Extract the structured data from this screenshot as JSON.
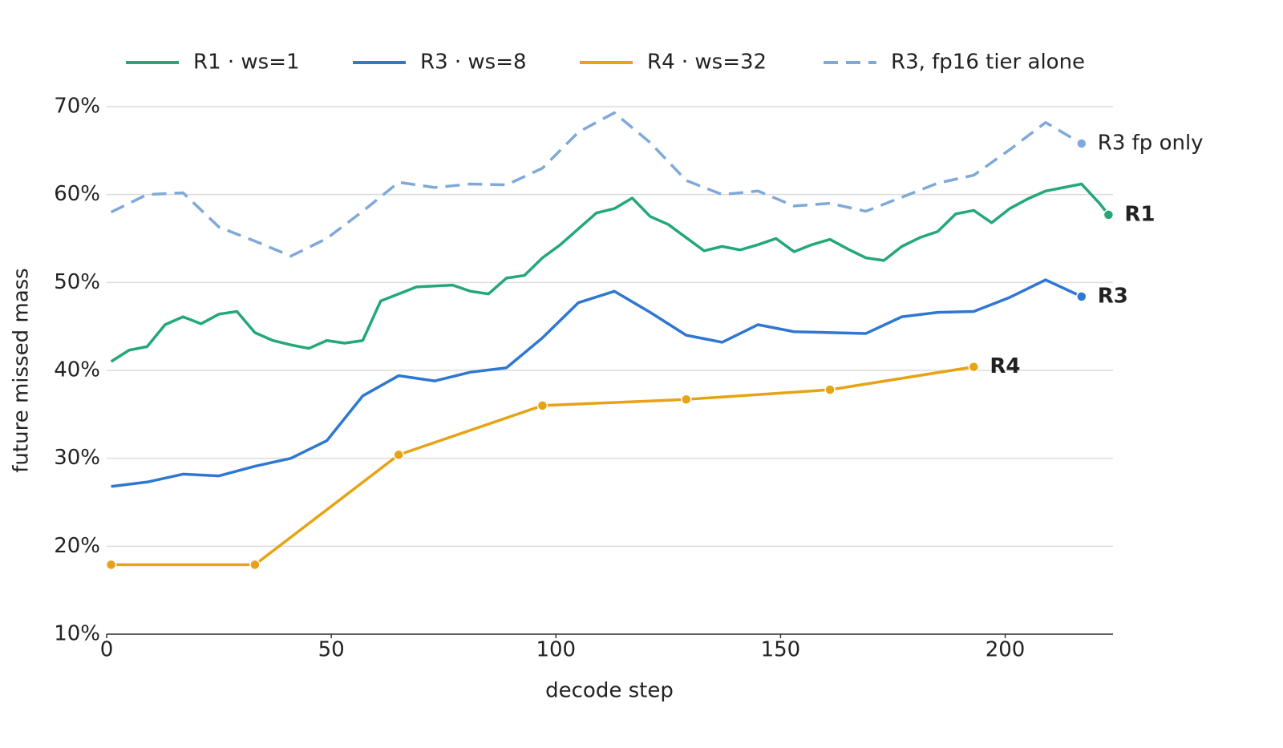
{
  "chart_data": {
    "type": "line",
    "xlabel": "decode step",
    "ylabel": "future missed mass",
    "xlim": [
      0,
      224
    ],
    "xticks": [
      0,
      50,
      100,
      150,
      200
    ],
    "ylim": [
      10,
      70
    ],
    "yticks": [
      {
        "value": 10,
        "label": "10%"
      },
      {
        "value": 20,
        "label": "20%"
      },
      {
        "value": 30,
        "label": "30%"
      },
      {
        "value": 40,
        "label": "40%"
      },
      {
        "value": 50,
        "label": "50%"
      },
      {
        "value": 60,
        "label": "60%"
      },
      {
        "value": 70,
        "label": "70%"
      }
    ],
    "grid": true,
    "legend": "top",
    "series": [
      {
        "name": "R1 · ws=1",
        "color": "#23a877",
        "end_label": "R1",
        "x": [
          1,
          5,
          9,
          13,
          17,
          21,
          25,
          29,
          33,
          37,
          41,
          45,
          49,
          53,
          57,
          61,
          65,
          69,
          73,
          77,
          81,
          85,
          89,
          93,
          97,
          101,
          105,
          109,
          113,
          117,
          121,
          125,
          129,
          133,
          137,
          141,
          145,
          149,
          153,
          157,
          161,
          165,
          169,
          173,
          177,
          181,
          185,
          189,
          193,
          197,
          201,
          205,
          209,
          213,
          217,
          221,
          223
        ],
        "values": [
          41.0,
          42.3,
          42.7,
          45.2,
          46.1,
          45.3,
          46.4,
          46.7,
          44.3,
          43.4,
          42.9,
          42.5,
          43.4,
          43.1,
          43.4,
          47.9,
          48.7,
          49.5,
          49.6,
          49.7,
          49.0,
          48.7,
          50.5,
          50.8,
          52.8,
          54.3,
          56.1,
          57.9,
          58.4,
          59.6,
          57.5,
          56.6,
          55.1,
          53.6,
          54.1,
          53.7,
          54.3,
          55.0,
          53.5,
          54.3,
          54.9,
          53.8,
          52.8,
          52.5,
          54.1,
          55.1,
          55.8,
          57.8,
          58.2,
          56.8,
          58.4,
          59.5,
          60.4,
          60.8,
          61.2,
          59.0,
          57.7
        ]
      },
      {
        "name": "R3 · ws=8",
        "color": "#2f77d0",
        "end_label": "R3",
        "x": [
          1,
          9,
          17,
          25,
          33,
          41,
          49,
          57,
          65,
          73,
          81,
          89,
          97,
          105,
          113,
          121,
          129,
          137,
          145,
          153,
          161,
          169,
          177,
          185,
          193,
          201,
          209,
          217
        ],
        "values": [
          26.8,
          27.3,
          28.2,
          28.0,
          29.1,
          30.0,
          32.0,
          37.1,
          39.4,
          38.8,
          39.8,
          40.3,
          43.7,
          47.7,
          49.0,
          46.6,
          44.0,
          43.2,
          45.2,
          44.4,
          44.3,
          44.2,
          46.1,
          46.6,
          46.7,
          48.3,
          50.3,
          48.4
        ]
      },
      {
        "name": "R4 · ws=32",
        "color": "#e6a313",
        "end_label": "R4",
        "markers": true,
        "x": [
          1,
          33,
          65,
          97,
          129,
          161,
          193
        ],
        "values": [
          17.9,
          17.9,
          30.4,
          36.0,
          36.7,
          37.8,
          40.4
        ]
      },
      {
        "name": "R3, fp16 tier alone",
        "color": "#7fa9d9",
        "end_label": "R3 fp only",
        "dashed": true,
        "x": [
          1,
          9,
          17,
          25,
          33,
          41,
          49,
          57,
          65,
          73,
          81,
          89,
          97,
          105,
          113,
          121,
          129,
          137,
          145,
          153,
          161,
          169,
          177,
          185,
          193,
          201,
          209,
          217
        ],
        "values": [
          58.0,
          60.0,
          60.2,
          56.3,
          54.7,
          53.0,
          55.0,
          58.1,
          61.4,
          60.8,
          61.2,
          61.1,
          63.0,
          67.1,
          69.3,
          65.9,
          61.6,
          60.0,
          60.4,
          58.7,
          59.0,
          58.1,
          59.7,
          61.3,
          62.2,
          65.1,
          68.2,
          65.8
        ]
      }
    ]
  }
}
